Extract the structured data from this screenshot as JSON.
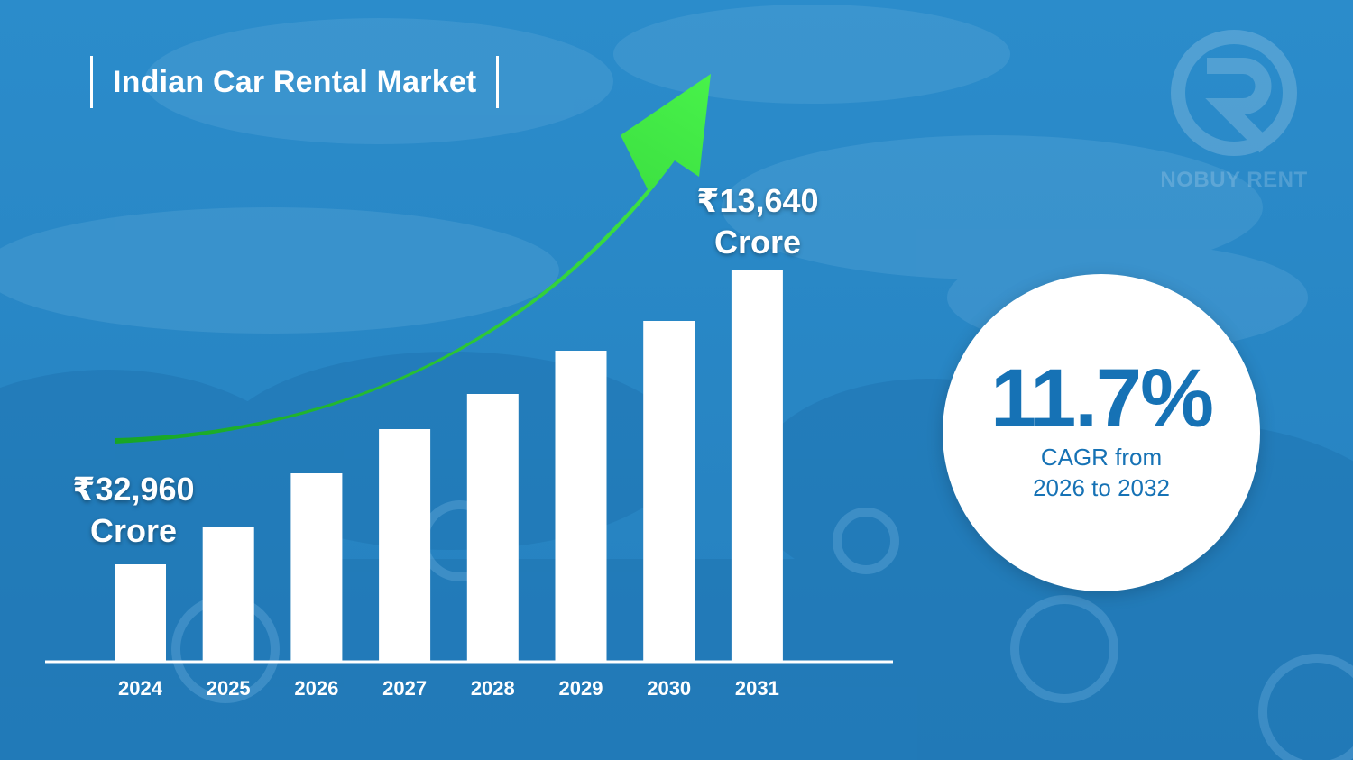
{
  "title": "Indian Car Rental Market",
  "brand": {
    "logo_text": "NOBUY RENT"
  },
  "colors": {
    "background": "#2a86c4",
    "bar": "#ffffff",
    "arrow": "#3ddc3a",
    "accent": "#1672b5"
  },
  "start_label": {
    "value": "₹32,960",
    "unit": "Crore"
  },
  "end_label": {
    "value": "₹13,640",
    "unit": "Crore"
  },
  "cagr": {
    "value": "11.7%",
    "line1": "CAGR from",
    "line2": "2026 to 2032"
  },
  "chart_data": {
    "type": "bar",
    "title": "Indian Car Rental Market",
    "categories": [
      "2024",
      "2025",
      "2026",
      "2027",
      "2028",
      "2029",
      "2030",
      "2031"
    ],
    "values": [
      107,
      148,
      208,
      257,
      296,
      344,
      377,
      433
    ],
    "grid": false,
    "axis_values_shown": false,
    "annotations": [
      "₹32,960 Crore",
      "₹13,640 Crore",
      "11.7% CAGR from 2026 to 2032"
    ]
  }
}
